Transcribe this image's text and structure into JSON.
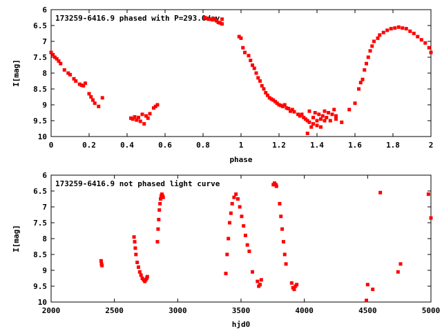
{
  "chart_data": [
    {
      "type": "scatter",
      "title": "173259-6416.9 phased with P=293.0day",
      "xlabel": "phase",
      "ylabel": "I[mag]",
      "xlim": [
        0,
        2
      ],
      "ylim": [
        6,
        10
      ],
      "y_inverted": true,
      "x_ticks": [
        "0",
        "0.2",
        "0.4",
        "0.6",
        "0.8",
        "1",
        "1.2",
        "1.4",
        "1.6",
        "1.8",
        "2"
      ],
      "y_ticks": [
        "6",
        "6.5",
        "7",
        "7.5",
        "8",
        "8.5",
        "9",
        "9.5",
        "10"
      ],
      "marker_color": "#ff0000",
      "series": [
        {
          "points": [
            [
              0.0,
              7.35
            ],
            [
              0.01,
              7.42
            ],
            [
              0.02,
              7.5
            ],
            [
              0.03,
              7.55
            ],
            [
              0.04,
              7.62
            ],
            [
              0.05,
              7.7
            ],
            [
              0.07,
              7.9
            ],
            [
              0.09,
              8.0
            ],
            [
              0.1,
              8.05
            ],
            [
              0.12,
              8.18
            ],
            [
              0.13,
              8.25
            ],
            [
              0.15,
              8.35
            ],
            [
              0.16,
              8.38
            ],
            [
              0.17,
              8.4
            ],
            [
              0.18,
              8.32
            ],
            [
              0.2,
              8.65
            ],
            [
              0.21,
              8.75
            ],
            [
              0.22,
              8.85
            ],
            [
              0.23,
              8.95
            ],
            [
              0.25,
              9.05
            ],
            [
              0.27,
              8.78
            ],
            [
              0.42,
              9.42
            ],
            [
              0.43,
              9.45
            ],
            [
              0.44,
              9.38
            ],
            [
              0.45,
              9.48
            ],
            [
              0.46,
              9.4
            ],
            [
              0.47,
              9.52
            ],
            [
              0.48,
              9.3
            ],
            [
              0.49,
              9.6
            ],
            [
              0.5,
              9.35
            ],
            [
              0.51,
              9.42
            ],
            [
              0.52,
              9.28
            ],
            [
              0.54,
              9.1
            ],
            [
              0.55,
              9.05
            ],
            [
              0.56,
              9.0
            ],
            [
              0.81,
              6.25
            ],
            [
              0.82,
              6.28
            ],
            [
              0.83,
              6.3
            ],
            [
              0.84,
              6.3
            ],
            [
              0.85,
              6.32
            ],
            [
              0.86,
              6.28
            ],
            [
              0.87,
              6.35
            ],
            [
              0.88,
              6.4
            ],
            [
              0.89,
              6.42
            ],
            [
              0.9,
              6.45
            ],
            [
              0.9,
              6.3
            ],
            [
              0.99,
              6.85
            ],
            [
              1.0,
              6.9
            ],
            [
              1.01,
              7.2
            ],
            [
              1.02,
              7.35
            ],
            [
              1.04,
              7.45
            ],
            [
              1.05,
              7.6
            ],
            [
              1.06,
              7.75
            ],
            [
              1.07,
              7.85
            ],
            [
              1.08,
              8.0
            ],
            [
              1.09,
              8.15
            ],
            [
              1.1,
              8.25
            ],
            [
              1.11,
              8.4
            ],
            [
              1.12,
              8.5
            ],
            [
              1.13,
              8.62
            ],
            [
              1.14,
              8.7
            ],
            [
              1.15,
              8.78
            ],
            [
              1.16,
              8.82
            ],
            [
              1.17,
              8.85
            ],
            [
              1.18,
              8.9
            ],
            [
              1.19,
              8.95
            ],
            [
              1.2,
              9.0
            ],
            [
              1.21,
              9.02
            ],
            [
              1.22,
              9.05
            ],
            [
              1.23,
              9.0
            ],
            [
              1.24,
              9.1
            ],
            [
              1.25,
              9.12
            ],
            [
              1.26,
              9.2
            ],
            [
              1.27,
              9.15
            ],
            [
              1.28,
              9.22
            ],
            [
              1.3,
              9.3
            ],
            [
              1.31,
              9.35
            ],
            [
              1.32,
              9.3
            ],
            [
              1.33,
              9.4
            ],
            [
              1.34,
              9.45
            ],
            [
              1.35,
              9.5
            ],
            [
              1.35,
              9.9
            ],
            [
              1.36,
              9.2
            ],
            [
              1.36,
              9.55
            ],
            [
              1.37,
              9.7
            ],
            [
              1.38,
              9.4
            ],
            [
              1.38,
              9.6
            ],
            [
              1.39,
              9.25
            ],
            [
              1.4,
              9.5
            ],
            [
              1.4,
              9.65
            ],
            [
              1.41,
              9.3
            ],
            [
              1.42,
              9.45
            ],
            [
              1.42,
              9.7
            ],
            [
              1.43,
              9.35
            ],
            [
              1.44,
              9.2
            ],
            [
              1.44,
              9.5
            ],
            [
              1.45,
              9.4
            ],
            [
              1.46,
              9.25
            ],
            [
              1.47,
              9.5
            ],
            [
              1.48,
              9.3
            ],
            [
              1.49,
              9.15
            ],
            [
              1.5,
              9.35
            ],
            [
              1.5,
              9.45
            ],
            [
              1.53,
              9.55
            ],
            [
              1.57,
              9.15
            ],
            [
              1.6,
              8.95
            ],
            [
              1.62,
              8.5
            ],
            [
              1.63,
              8.3
            ],
            [
              1.64,
              8.2
            ],
            [
              1.65,
              7.9
            ],
            [
              1.66,
              7.7
            ],
            [
              1.67,
              7.5
            ],
            [
              1.68,
              7.3
            ],
            [
              1.69,
              7.15
            ],
            [
              1.7,
              7.0
            ],
            [
              1.72,
              6.9
            ],
            [
              1.73,
              6.8
            ],
            [
              1.75,
              6.72
            ],
            [
              1.77,
              6.65
            ],
            [
              1.79,
              6.6
            ],
            [
              1.81,
              6.58
            ],
            [
              1.83,
              6.55
            ],
            [
              1.85,
              6.58
            ],
            [
              1.87,
              6.6
            ],
            [
              1.89,
              6.68
            ],
            [
              1.91,
              6.75
            ],
            [
              1.93,
              6.85
            ],
            [
              1.95,
              6.95
            ],
            [
              1.97,
              7.05
            ],
            [
              1.99,
              7.2
            ],
            [
              2.0,
              7.35
            ]
          ]
        }
      ]
    },
    {
      "type": "scatter",
      "title": "173259-6416.9 not phased light curve",
      "xlabel": "hjd0",
      "ylabel": "I[mag]",
      "xlim": [
        2000,
        5000
      ],
      "ylim": [
        6,
        10
      ],
      "y_inverted": true,
      "x_ticks": [
        "2000",
        "2500",
        "3000",
        "3500",
        "4000",
        "4500",
        "5000"
      ],
      "y_ticks": [
        "6",
        "6.5",
        "7",
        "7.5",
        "8",
        "8.5",
        "9",
        "9.5",
        "10"
      ],
      "marker_color": "#ff0000",
      "series": [
        {
          "points": [
            [
              2395,
              8.7
            ],
            [
              2398,
              8.8
            ],
            [
              2402,
              8.85
            ],
            [
              2655,
              7.95
            ],
            [
              2660,
              8.1
            ],
            [
              2665,
              8.3
            ],
            [
              2670,
              8.5
            ],
            [
              2680,
              8.75
            ],
            [
              2690,
              8.9
            ],
            [
              2700,
              9.05
            ],
            [
              2710,
              9.15
            ],
            [
              2720,
              9.25
            ],
            [
              2730,
              9.3
            ],
            [
              2740,
              9.35
            ],
            [
              2748,
              9.3
            ],
            [
              2755,
              9.25
            ],
            [
              2760,
              9.2
            ],
            [
              2840,
              8.1
            ],
            [
              2845,
              7.7
            ],
            [
              2850,
              7.4
            ],
            [
              2855,
              7.1
            ],
            [
              2860,
              6.9
            ],
            [
              2865,
              6.75
            ],
            [
              2870,
              6.65
            ],
            [
              2875,
              6.6
            ],
            [
              2880,
              6.65
            ],
            [
              2885,
              6.7
            ],
            [
              3380,
              9.1
            ],
            [
              3390,
              8.5
            ],
            [
              3400,
              8.0
            ],
            [
              3410,
              7.5
            ],
            [
              3420,
              7.2
            ],
            [
              3430,
              6.9
            ],
            [
              3445,
              6.7
            ],
            [
              3460,
              6.6
            ],
            [
              3475,
              6.75
            ],
            [
              3490,
              7.0
            ],
            [
              3505,
              7.3
            ],
            [
              3520,
              7.6
            ],
            [
              3535,
              7.9
            ],
            [
              3550,
              8.2
            ],
            [
              3565,
              8.4
            ],
            [
              3590,
              9.05
            ],
            [
              3630,
              9.35
            ],
            [
              3640,
              9.5
            ],
            [
              3650,
              9.45
            ],
            [
              3660,
              9.3
            ],
            [
              3755,
              6.3
            ],
            [
              3765,
              6.25
            ],
            [
              3775,
              6.3
            ],
            [
              3780,
              6.35
            ],
            [
              3805,
              6.9
            ],
            [
              3815,
              7.3
            ],
            [
              3825,
              7.7
            ],
            [
              3835,
              8.1
            ],
            [
              3845,
              8.5
            ],
            [
              3855,
              8.8
            ],
            [
              3900,
              9.4
            ],
            [
              3910,
              9.55
            ],
            [
              3920,
              9.6
            ],
            [
              3930,
              9.5
            ],
            [
              3940,
              9.45
            ],
            [
              4490,
              9.95
            ],
            [
              4500,
              9.45
            ],
            [
              4540,
              9.6
            ],
            [
              4600,
              6.55
            ],
            [
              4740,
              9.05
            ],
            [
              4760,
              8.8
            ],
            [
              4980,
              6.6
            ],
            [
              5000,
              7.35
            ]
          ]
        }
      ]
    }
  ]
}
